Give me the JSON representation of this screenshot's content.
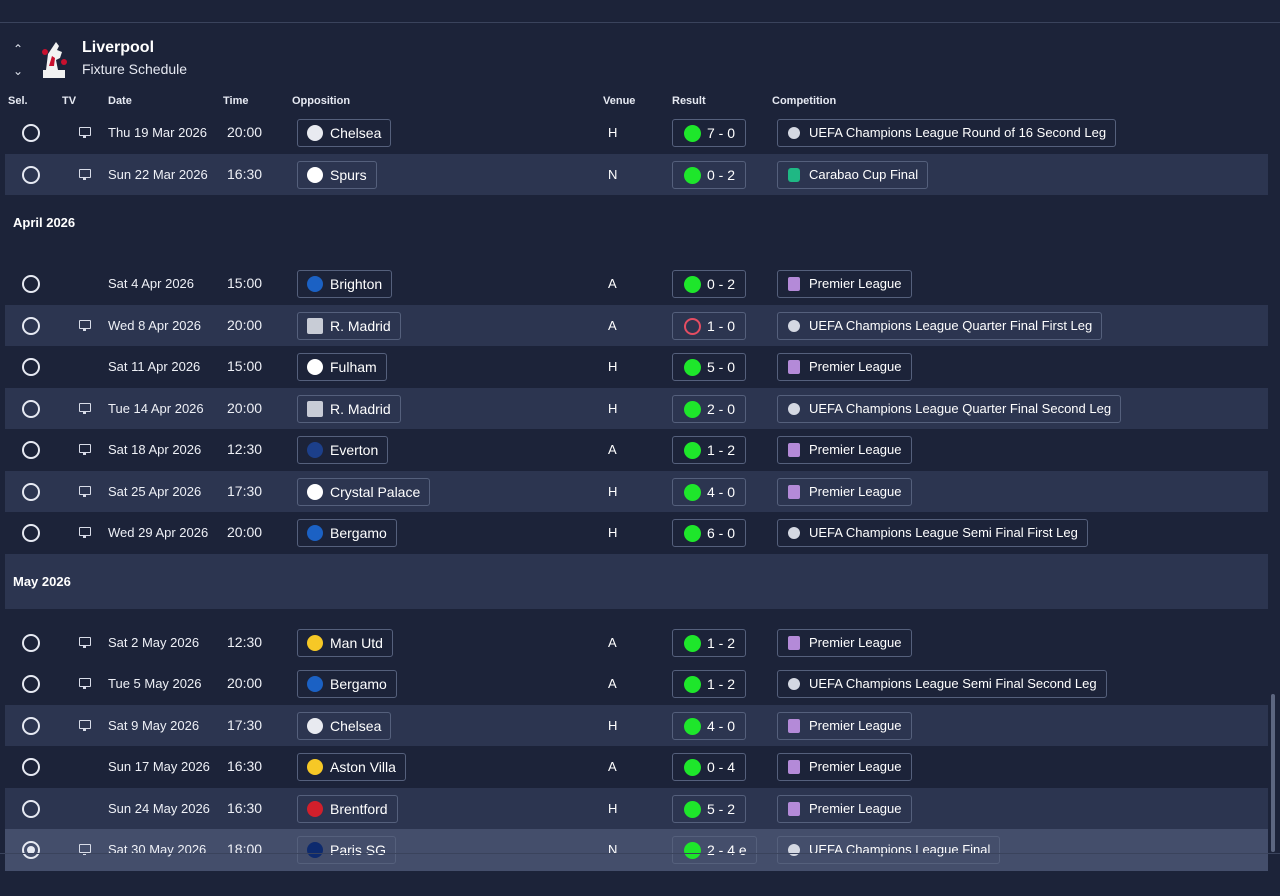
{
  "header": {
    "club": "Liverpool",
    "subtitle": "Fixture Schedule"
  },
  "columns": {
    "sel": "Sel.",
    "tv": "TV",
    "date": "Date",
    "time": "Time",
    "opposition": "Opposition",
    "venue": "Venue",
    "result": "Result",
    "competition": "Competition"
  },
  "months": {
    "april": "April 2026",
    "may": "May 2026"
  },
  "fixtures": [
    {
      "date": "Thu 19 Mar 2026",
      "time": "20:00",
      "opp": "Chelsea",
      "venue": "H",
      "result": "7 - 0",
      "comp": "UEFA Champions League Round of 16  Second Leg"
    },
    {
      "date": "Sun 22 Mar 2026",
      "time": "16:30",
      "opp": "Spurs",
      "venue": "N",
      "result": "0 - 2",
      "comp": "Carabao Cup Final"
    },
    {
      "date": "Sat 4 Apr 2026",
      "time": "15:00",
      "opp": "Brighton",
      "venue": "A",
      "result": "0 - 2",
      "comp": "Premier League"
    },
    {
      "date": "Wed 8 Apr 2026",
      "time": "20:00",
      "opp": "R. Madrid",
      "venue": "A",
      "result": "1 - 0",
      "comp": "UEFA Champions League Quarter Final First Leg"
    },
    {
      "date": "Sat 11 Apr 2026",
      "time": "15:00",
      "opp": "Fulham",
      "venue": "H",
      "result": "5 - 0",
      "comp": "Premier League"
    },
    {
      "date": "Tue 14 Apr 2026",
      "time": "20:00",
      "opp": "R. Madrid",
      "venue": "H",
      "result": "2 - 0",
      "comp": "UEFA Champions League Quarter Final Second Leg"
    },
    {
      "date": "Sat 18 Apr 2026",
      "time": "12:30",
      "opp": "Everton",
      "venue": "A",
      "result": "1 - 2",
      "comp": "Premier League"
    },
    {
      "date": "Sat 25 Apr 2026",
      "time": "17:30",
      "opp": "Crystal Palace",
      "venue": "H",
      "result": "4 - 0",
      "comp": "Premier League"
    },
    {
      "date": "Wed 29 Apr 2026",
      "time": "20:00",
      "opp": "Bergamo",
      "venue": "H",
      "result": "6 - 0",
      "comp": "UEFA Champions League Semi Final First Leg"
    },
    {
      "date": "Sat 2 May 2026",
      "time": "12:30",
      "opp": "Man Utd",
      "venue": "A",
      "result": "1 - 2",
      "comp": "Premier League"
    },
    {
      "date": "Tue 5 May 2026",
      "time": "20:00",
      "opp": "Bergamo",
      "venue": "A",
      "result": "1 - 2",
      "comp": "UEFA Champions League Semi Final Second Leg"
    },
    {
      "date": "Sat 9 May 2026",
      "time": "17:30",
      "opp": "Chelsea",
      "venue": "H",
      "result": "4 - 0",
      "comp": "Premier League"
    },
    {
      "date": "Sun 17 May 2026",
      "time": "16:30",
      "opp": "Aston Villa",
      "venue": "A",
      "result": "0 - 4",
      "comp": "Premier League"
    },
    {
      "date": "Sun 24 May 2026",
      "time": "16:30",
      "opp": "Brentford",
      "venue": "H",
      "result": "5 - 2",
      "comp": "Premier League"
    },
    {
      "date": "Sat 30 May 2026",
      "time": "18:00",
      "opp": "Paris SG",
      "venue": "N",
      "result": "2 - 4 e",
      "comp": "UEFA Champions League Final"
    }
  ],
  "icons": {
    "chevron_up": "chevron-up-icon",
    "chevron_down": "chevron-down-icon",
    "crest": "liverbird-crest-icon",
    "tv": "tv-icon",
    "result_win": "green-dot-icon",
    "result_outline": "red-ring-icon"
  },
  "colors": {
    "background": "#1c2339",
    "row_alt": "#2c3550",
    "row_selected": "#444e6b",
    "result_dot": "#1ee62b",
    "result_ring": "#e44d62"
  }
}
